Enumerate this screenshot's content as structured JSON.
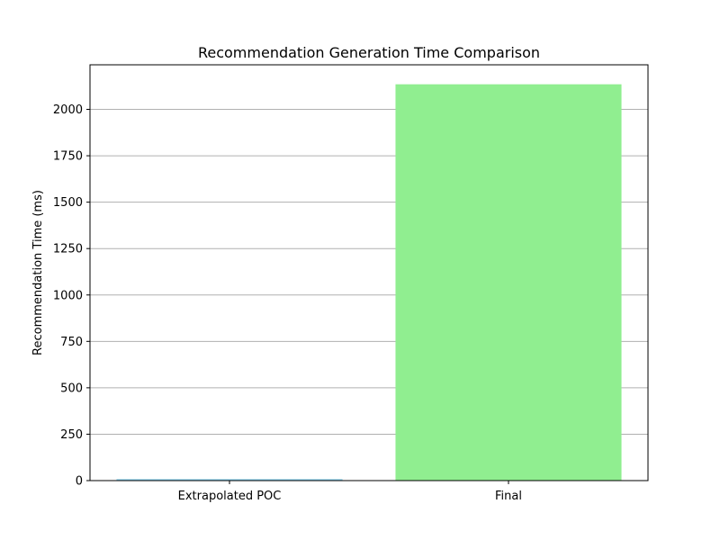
{
  "chart_data": {
    "type": "bar",
    "title": "Recommendation Generation Time Comparison",
    "xlabel": "",
    "ylabel": "Recommendation Time (ms)",
    "categories": [
      "Extrapolated POC",
      "Final"
    ],
    "values": [
      8,
      2135
    ],
    "colors": [
      "#87ceeb",
      "#90ee90"
    ],
    "ylim": [
      0,
      2240
    ],
    "yticks": [
      0,
      250,
      500,
      750,
      1000,
      1250,
      1500,
      1750,
      2000
    ],
    "grid": "y",
    "legend": "none"
  }
}
